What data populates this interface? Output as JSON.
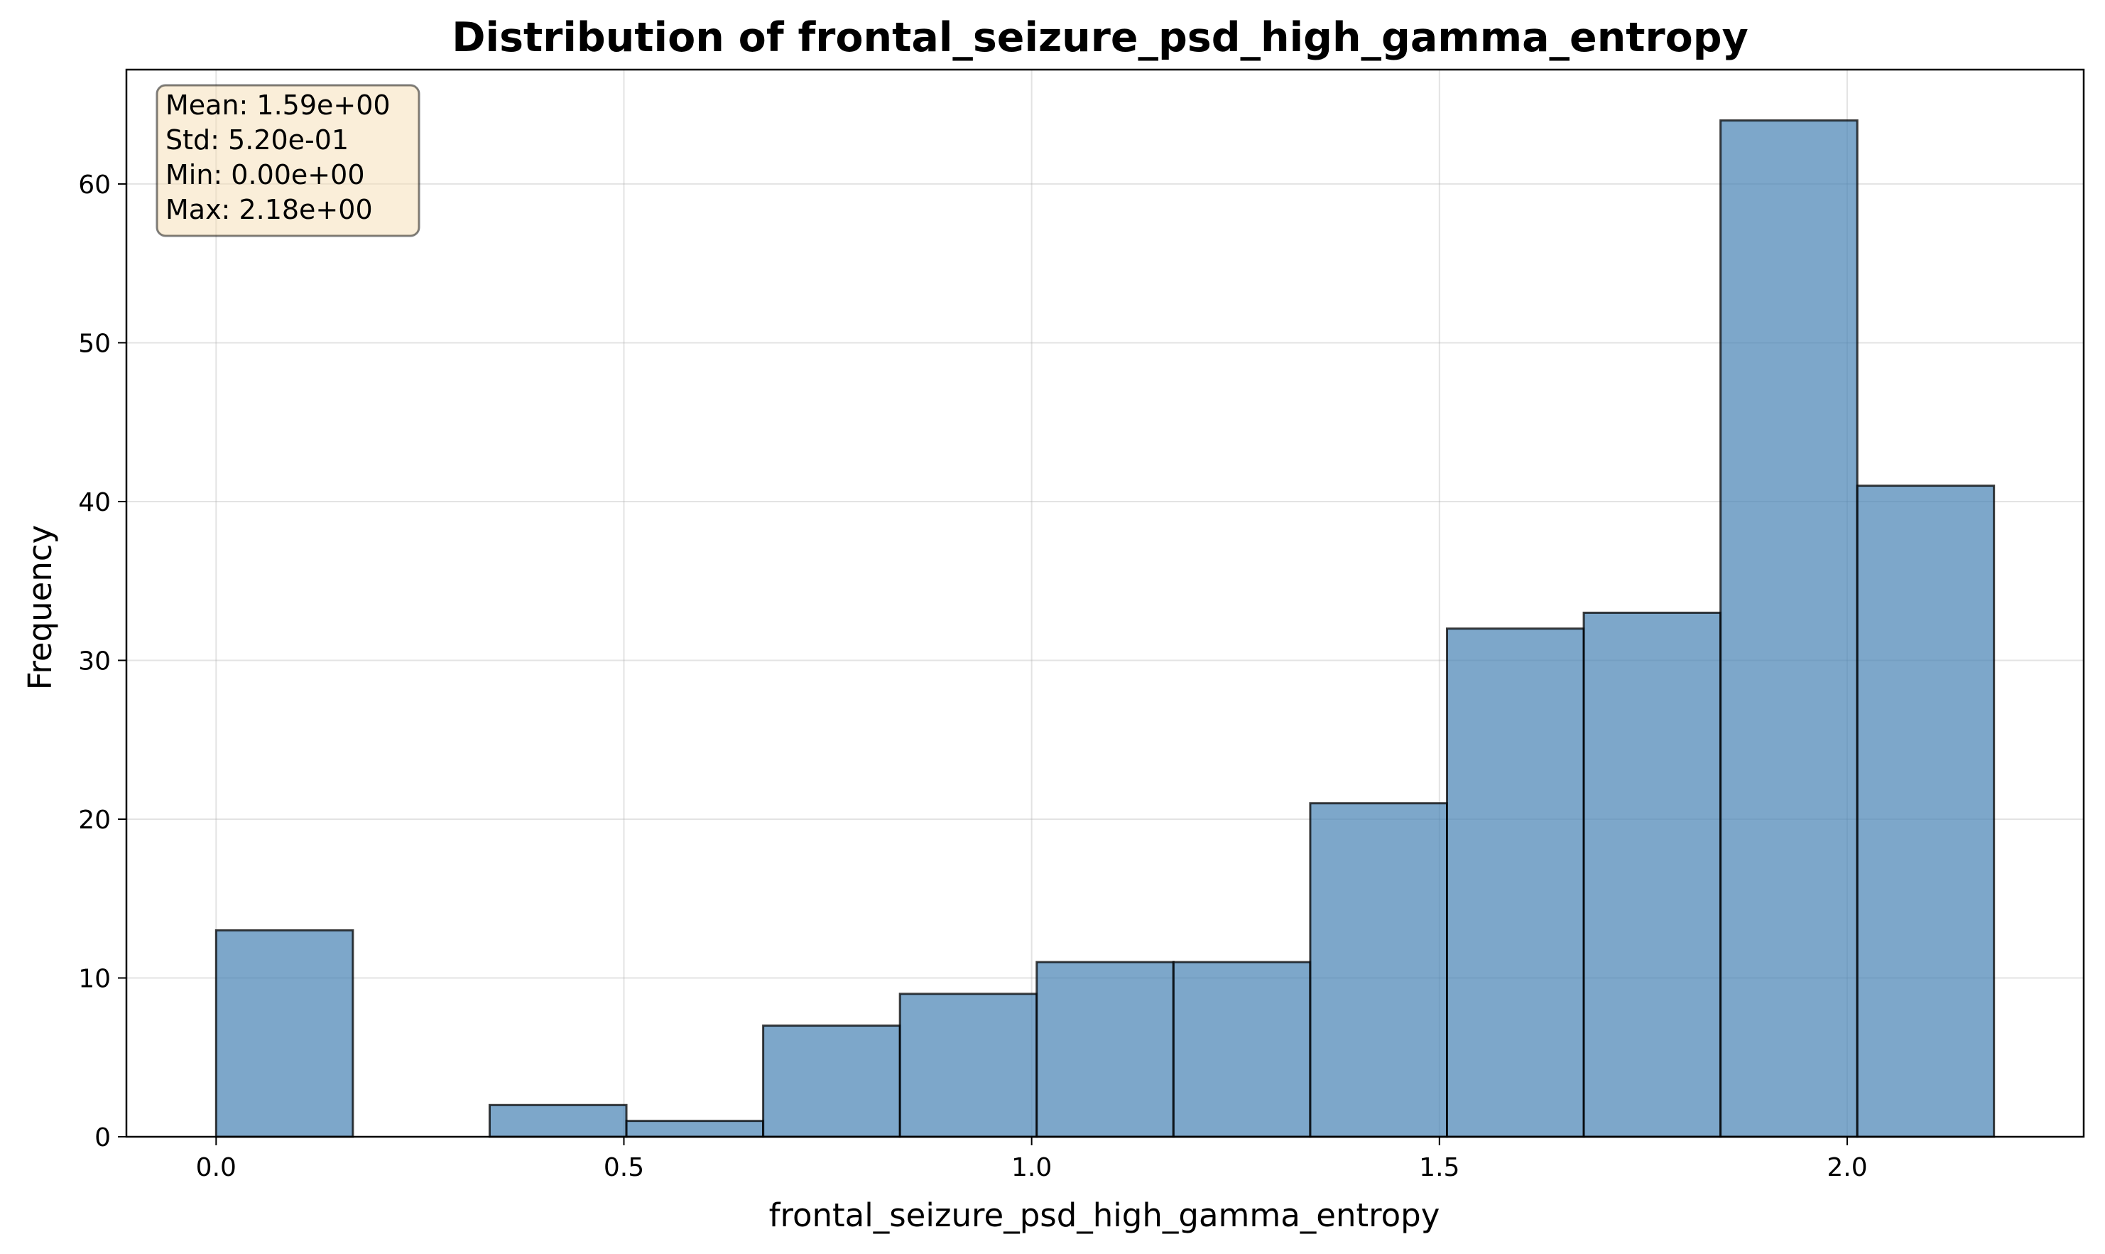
{
  "chart_data": {
    "type": "bar",
    "title": "Distribution of frontal_seizure_psd_high_gamma_entropy",
    "xlabel": "frontal_seizure_psd_high_gamma_entropy",
    "ylabel": "Frequency",
    "xlim": [
      -0.11,
      2.29
    ],
    "ylim": [
      0,
      67.2
    ],
    "grid": true,
    "bar_color": "#4682b4",
    "bar_opacity": 0.7,
    "edge_color": "#000000",
    "bins": {
      "edges": [
        0.0,
        0.1677,
        0.3354,
        0.5031,
        0.6708,
        0.8385,
        1.0062,
        1.1739,
        1.3416,
        1.5093,
        1.677,
        1.8447,
        2.0124,
        2.18
      ],
      "counts": [
        13,
        0,
        2,
        1,
        7,
        9,
        11,
        11,
        21,
        32,
        33,
        64,
        41
      ]
    },
    "x_ticks": [
      {
        "value": 0.0,
        "label": "0.0"
      },
      {
        "value": 0.5,
        "label": "0.5"
      },
      {
        "value": 1.0,
        "label": "1.0"
      },
      {
        "value": 1.5,
        "label": "1.5"
      },
      {
        "value": 2.0,
        "label": "2.0"
      }
    ],
    "y_ticks": [
      {
        "value": 0,
        "label": "0"
      },
      {
        "value": 10,
        "label": "10"
      },
      {
        "value": 20,
        "label": "20"
      },
      {
        "value": 30,
        "label": "30"
      },
      {
        "value": 40,
        "label": "40"
      },
      {
        "value": 50,
        "label": "50"
      },
      {
        "value": 60,
        "label": "60"
      }
    ],
    "stats_box": {
      "placement": "top-left",
      "background": "#f5deb3",
      "lines": [
        "Mean: 1.59e+00",
        "Std: 5.20e-01",
        "Min: 0.00e+00",
        "Max: 2.18e+00"
      ]
    }
  }
}
